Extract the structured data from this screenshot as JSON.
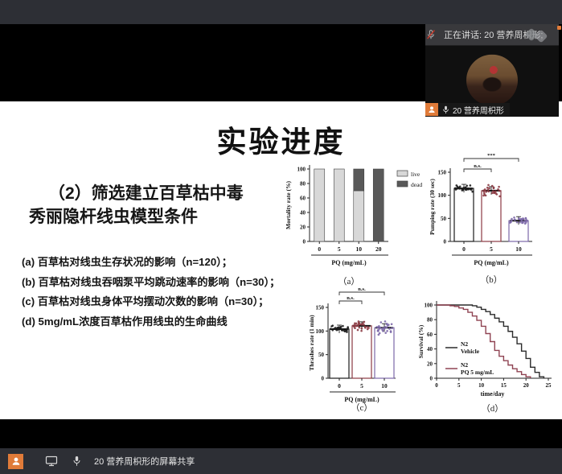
{
  "meeting": {
    "speaking_label": "正在讲话: 20 营养周枳形;",
    "participant_name": "20 营养周枳形",
    "share_label": "20 营养周枳形的屏幕共享"
  },
  "slide": {
    "title": "实验进度",
    "heading_line1": "（2）筛选建立百草枯中毒",
    "heading_line2": "秀丽隐杆线虫模型条件",
    "bullets": [
      "(a) 百草枯对线虫生存状况的影响（n=120）；",
      "(b) 百草枯对线虫吞咽泵平均跳动速率的影响（n=30）；",
      "(c) 百草枯对线虫身体平均摆动次数的影响（n=30）；",
      "(d) 5mg/mL浓度百草枯作用线虫的生命曲线"
    ]
  },
  "colors": {
    "accent_orange": "#e07b39",
    "group_0": "#1c1c1c",
    "group_5": "#8b3a42",
    "group_10": "#7c68a8",
    "live_fill": "#d8d8d8",
    "dead_fill": "#595959",
    "survival_vehicle": "#2b2b2b",
    "survival_pq": "#8f4352"
  },
  "chart_data": [
    {
      "id": "a",
      "type": "bar",
      "stacked": true,
      "caption": "（a）",
      "xlabel": "PQ (mg/mL)",
      "ylabel": "Mortality rate (%)",
      "categories": [
        "0",
        "5",
        "10",
        "20"
      ],
      "series": [
        {
          "name": "live",
          "color": "#d8d8d8",
          "values": [
            100,
            100,
            70,
            0
          ]
        },
        {
          "name": "dead",
          "color": "#595959",
          "values": [
            0,
            0,
            30,
            100
          ]
        }
      ],
      "ylim": [
        0,
        100
      ],
      "yticks": [
        0,
        20,
        40,
        60,
        80,
        100
      ],
      "legend_position": "right"
    },
    {
      "id": "b",
      "type": "bar-scatter",
      "caption": "（b）",
      "xlabel": "PQ (mg/mL)",
      "ylabel": "Pumping rate (30 sec)",
      "categories": [
        "0",
        "5",
        "10"
      ],
      "values": [
        115,
        110,
        45
      ],
      "sd": [
        7,
        12,
        6
      ],
      "n_points": 30,
      "colors": [
        "#1c1c1c",
        "#8b3a42",
        "#7c68a8"
      ],
      "ylim": [
        0,
        150
      ],
      "yticks": [
        0,
        50,
        100,
        150
      ],
      "annotations": [
        {
          "groups": [
            0,
            1
          ],
          "label": "n.s."
        },
        {
          "groups": [
            0,
            2
          ],
          "label": "***"
        }
      ]
    },
    {
      "id": "c",
      "type": "bar-scatter",
      "caption": "（c）",
      "xlabel": "PQ (mg/mL)",
      "ylabel": "Thrashes rate (1 min)",
      "categories": [
        "0",
        "5",
        "10"
      ],
      "values": [
        104,
        111,
        107
      ],
      "sd": [
        7,
        11,
        13
      ],
      "n_points": 30,
      "colors": [
        "#1c1c1c",
        "#8b3a42",
        "#7c68a8"
      ],
      "ylim": [
        0,
        150
      ],
      "yticks": [
        0,
        50,
        100,
        150
      ],
      "annotations": [
        {
          "groups": [
            0,
            1
          ],
          "label": "n.s."
        },
        {
          "groups": [
            0,
            2
          ],
          "label": "n.s."
        }
      ]
    },
    {
      "id": "d",
      "type": "survival",
      "caption": "（d）",
      "xlabel": "time/day",
      "ylabel": "Survival (%)",
      "xlim": [
        0,
        25
      ],
      "xticks": [
        0,
        5,
        10,
        15,
        20,
        25
      ],
      "ylim": [
        0,
        100
      ],
      "yticks": [
        0,
        20,
        40,
        60,
        80,
        100
      ],
      "legend_position": "inside-left",
      "series": [
        {
          "name": "N2 Vehicle",
          "legend_lines": [
            "N2",
            "Vehicle"
          ],
          "color": "#2b2b2b",
          "x": [
            0,
            8,
            9,
            10,
            11,
            12,
            13,
            14,
            15,
            16,
            17,
            18,
            19,
            20,
            21,
            22,
            23,
            24
          ],
          "y": [
            100,
            99,
            97,
            94,
            91,
            87,
            82,
            77,
            71,
            64,
            56,
            47,
            37,
            27,
            15,
            8,
            2,
            0
          ]
        },
        {
          "name": "N2 PQ 5 mg/mL",
          "legend_lines": [
            "N2",
            "PQ 5 mg/mL"
          ],
          "color": "#8f4352",
          "x": [
            0,
            3,
            4,
            5,
            6,
            7,
            8,
            9,
            10,
            11,
            12,
            13,
            14,
            15,
            16,
            17,
            18,
            19,
            20,
            21
          ],
          "y": [
            100,
            99,
            98,
            96,
            94,
            90,
            85,
            79,
            71,
            61,
            50,
            38,
            30,
            24,
            18,
            13,
            9,
            5,
            2,
            0
          ]
        }
      ]
    }
  ]
}
